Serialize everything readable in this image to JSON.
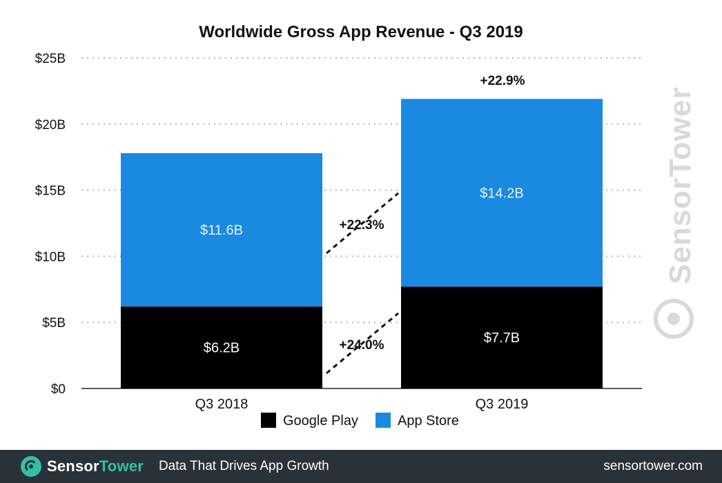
{
  "chart_data": {
    "type": "bar",
    "stacked": true,
    "title": "Worldwide Gross App Revenue - Q3 2019",
    "categories": [
      "Q3 2018",
      "Q3 2019"
    ],
    "series": [
      {
        "name": "Google Play",
        "values": [
          6.2,
          7.7
        ],
        "labels": [
          "$6.2B",
          "$7.7B"
        ],
        "color": "#000000"
      },
      {
        "name": "App Store",
        "values": [
          11.6,
          14.2
        ],
        "labels": [
          "$11.6B",
          "$14.2B"
        ],
        "color": "#1a8ae0"
      }
    ],
    "ylim": [
      0,
      25
    ],
    "yticks": [
      0,
      5,
      10,
      15,
      20,
      25
    ],
    "ytick_labels": [
      "$0",
      "$5B",
      "$10B",
      "$15B",
      "$20B",
      "$25B"
    ],
    "grid": true,
    "legend_position": "bottom",
    "annotations": {
      "total_growth": "+22.9%",
      "app_store_growth": "+22.3%",
      "google_play_growth": "+24.0%"
    }
  },
  "watermark": "SensorTower",
  "footer": {
    "brand_sensor": "Sensor",
    "brand_tower": "Tower",
    "tagline": "Data That Drives App Growth",
    "url": "sensortower.com"
  }
}
